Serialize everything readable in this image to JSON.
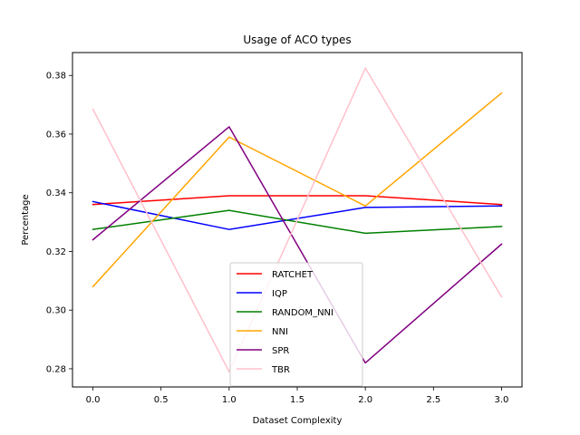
{
  "chart_data": {
    "type": "line",
    "title": "Usage of ACO types",
    "xlabel": "Dataset Complexity",
    "ylabel": "Percentage",
    "x": [
      0,
      1,
      2,
      3
    ],
    "xlim": [
      -0.15,
      3.15
    ],
    "ylim": [
      0.2738,
      0.3878
    ],
    "xticks": [
      0.0,
      0.5,
      1.0,
      1.5,
      2.0,
      2.5,
      3.0
    ],
    "xtick_labels": [
      "0.0",
      "0.5",
      "1.0",
      "1.5",
      "2.0",
      "2.5",
      "3.0"
    ],
    "yticks": [
      0.28,
      0.3,
      0.32,
      0.34,
      0.36,
      0.38
    ],
    "ytick_labels": [
      "0.28",
      "0.30",
      "0.32",
      "0.34",
      "0.36",
      "0.38"
    ],
    "grid": false,
    "legend_position": "lower-center",
    "series": [
      {
        "name": "RATCHET",
        "color": "#ff0000",
        "values": [
          0.336,
          0.339,
          0.339,
          0.336
        ]
      },
      {
        "name": "IQP",
        "color": "#0000ff",
        "values": [
          0.337,
          0.3275,
          0.335,
          0.3355
        ]
      },
      {
        "name": "RANDOM_NNI",
        "color": "#008000",
        "values": [
          0.3275,
          0.334,
          0.3262,
          0.3285
        ]
      },
      {
        "name": "NNI",
        "color": "#ffa500",
        "values": [
          0.308,
          0.359,
          0.3355,
          0.374
        ]
      },
      {
        "name": "SPR",
        "color": "#800080",
        "values": [
          0.324,
          0.3625,
          0.282,
          0.3225
        ]
      },
      {
        "name": "TBR",
        "color": "#ffc0cb",
        "values": [
          0.3685,
          0.279,
          0.3825,
          0.3045
        ]
      }
    ]
  }
}
